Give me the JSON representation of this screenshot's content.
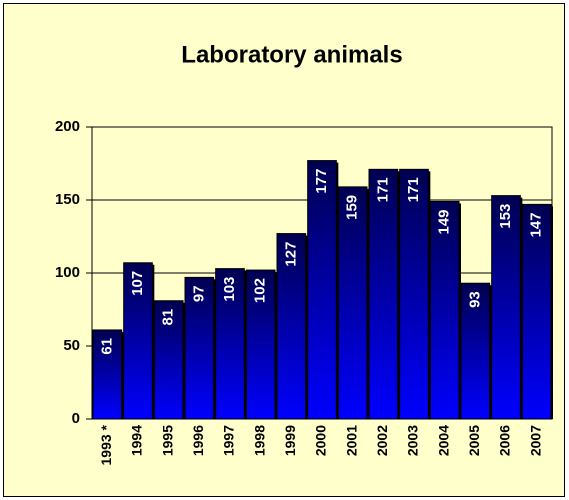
{
  "chart_data": {
    "type": "bar",
    "title": "Laboratory animals",
    "categories": [
      "1993 *",
      "1994",
      "1995",
      "1996",
      "1997",
      "1998",
      "1999",
      "2000",
      "2001",
      "2002",
      "2003",
      "2004",
      "2005",
      "2006",
      "2007"
    ],
    "values": [
      61,
      107,
      81,
      97,
      103,
      102,
      127,
      177,
      159,
      171,
      171,
      149,
      93,
      153,
      147
    ],
    "color": "#0000ff",
    "ylim": [
      0,
      200
    ],
    "yticks": [
      0,
      50,
      100,
      150,
      200
    ],
    "grid": true
  }
}
